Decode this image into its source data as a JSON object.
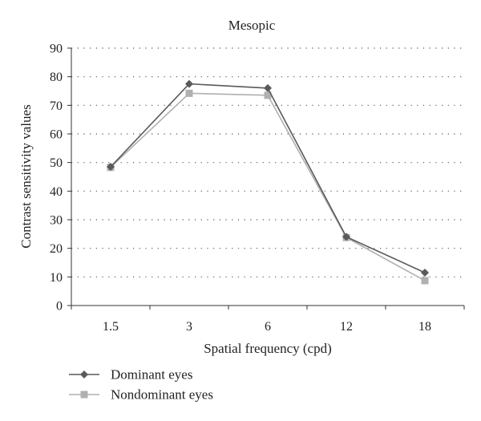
{
  "chart_data": {
    "type": "line",
    "title": "Mesopic",
    "xlabel": "Spatial frequency (cpd)",
    "ylabel": "Contrast sensitivity values",
    "categories": [
      "1.5",
      "3",
      "6",
      "12",
      "18"
    ],
    "ylim": [
      0,
      90
    ],
    "yticks": [
      "0",
      "10",
      "20",
      "30",
      "40",
      "50",
      "60",
      "70",
      "80",
      "90"
    ],
    "grid": "horizontal dotted",
    "legend_position": "bottom-left",
    "series": [
      {
        "name": "Dominant eyes",
        "values": [
          48.5,
          77.5,
          76,
          24,
          11.5
        ],
        "color": "#5a5a5a",
        "marker": "diamond"
      },
      {
        "name": "Nondominant eyes",
        "values": [
          48.3,
          74.2,
          73.5,
          23.8,
          8.7
        ],
        "color": "#b0b0b0",
        "marker": "square"
      }
    ]
  }
}
